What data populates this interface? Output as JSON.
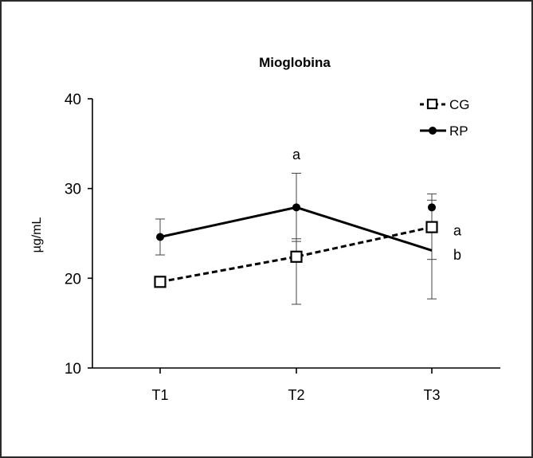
{
  "chart_data": {
    "type": "line",
    "title": "Mioglobina",
    "xlabel": "",
    "ylabel": "µg/mL",
    "categories": [
      "T1",
      "T2",
      "T3"
    ],
    "ylim": [
      10,
      40
    ],
    "yticks": [
      10,
      20,
      30,
      40
    ],
    "grid": false,
    "legend_position": "top-right",
    "series": [
      {
        "name": "CG",
        "style": "dashed",
        "marker": "open-square",
        "color": "#000000",
        "values": [
          19.6,
          22.4,
          25.7
        ],
        "error": [
          null,
          {
            "low": 17.1,
            "high": 24.4
          },
          {
            "low": 17.7,
            "high": 28.7
          }
        ]
      },
      {
        "name": "RP",
        "style": "solid",
        "marker": "filled-circle",
        "color": "#000000",
        "values": [
          24.6,
          27.9,
          23.1
        ],
        "extra_point": {
          "category": "T3",
          "value": 27.9
        },
        "error": [
          {
            "low": 22.6,
            "high": 26.6
          },
          {
            "low": 24.1,
            "high": 31.7
          },
          {
            "low": 22.1,
            "high": 29.4
          }
        ]
      }
    ],
    "annotations": [
      {
        "text": "a",
        "category": "T2",
        "value": 33.8
      },
      {
        "text": "a",
        "category": "T3",
        "value": 25.3,
        "side": "right"
      },
      {
        "text": "b",
        "category": "T3",
        "value": 22.6,
        "side": "right"
      }
    ]
  }
}
